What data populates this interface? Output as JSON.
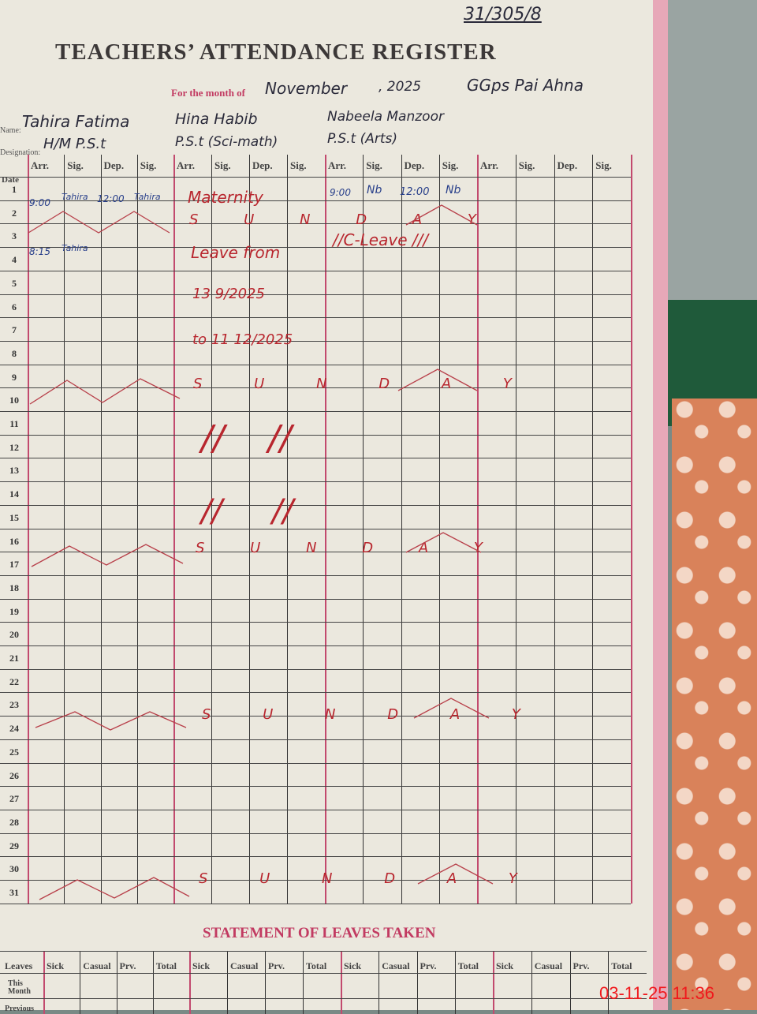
{
  "register": {
    "corner_note": "31/305/8",
    "title": "TEACHERS’ ATTENDANCE REGISTER",
    "month_label": "For the month of",
    "month": "November",
    "year": ", 2025",
    "school": "GGps Pai Ahna",
    "name_label": "Name:",
    "designation_label": "Designation:",
    "date_header": "Date",
    "column_headers": [
      "Arr.",
      "Sig.",
      "Dep.",
      "Sig."
    ],
    "teachers": [
      {
        "name": "Tahira Fatima",
        "designation": "H/M P.S.t"
      },
      {
        "name": "Hina Habib",
        "designation": "P.S.t (Sci-math)"
      },
      {
        "name": "Nabeela Manzoor",
        "designation": "P.S.t (Arts)"
      },
      {
        "name": "",
        "designation": ""
      }
    ],
    "dates": [
      "1",
      "2",
      "3",
      "4",
      "5",
      "6",
      "7",
      "8",
      "9",
      "10",
      "11",
      "12",
      "13",
      "14",
      "15",
      "16",
      "17",
      "18",
      "19",
      "20",
      "21",
      "22",
      "23",
      "24",
      "25",
      "26",
      "27",
      "28",
      "29",
      "30",
      "31"
    ],
    "entries": {
      "t1_day1_arr": "9:00",
      "t1_day1_sig": "Tahira",
      "t1_day1_dep": "12:00",
      "t1_day1_sig2": "Tahira",
      "t1_day3_arr": "8:15",
      "t1_day3_sig": "Tahira",
      "t2_maternity": "Maternity",
      "t2_leave_from": "Leave from",
      "t2_from_date": "13 9/2025",
      "t2_to_date": "to 11 12/2025",
      "t3_day1_arr": "9:00",
      "t3_day1_sig": "Nb",
      "t3_day1_dep": "12:00",
      "t3_day1_sig2": "Nb",
      "t3_day3": "//C-Leave ///",
      "sunday": "S U N D A Y",
      "ditto": "//"
    },
    "leaves": {
      "title": "STATEMENT OF LEAVES TAKEN",
      "row_header": "Leaves",
      "columns": [
        "Sick",
        "Casual",
        "Prv.",
        "Total"
      ],
      "rows": [
        "This Month",
        "Previous"
      ]
    },
    "timestamp": "03-11-25 11:36"
  }
}
